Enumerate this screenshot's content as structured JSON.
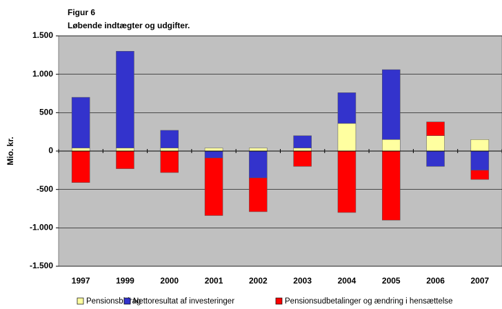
{
  "chart_data": {
    "type": "bar",
    "stacked": true,
    "title": "Figur 6",
    "subtitle": "Løbende indtægter og udgifter.",
    "y_label": "Mio. kr.",
    "categories": [
      "1997",
      "1999",
      "2000",
      "2001",
      "2002",
      "2003",
      "2004",
      "2005",
      "2006",
      "2007"
    ],
    "series": [
      {
        "name": "Pensionsbidrag",
        "color": "#ffffa0",
        "values": [
          40,
          40,
          40,
          40,
          40,
          40,
          360,
          150,
          200,
          150
        ]
      },
      {
        "name": "Nettoresultat af investeringer",
        "color": "#3333cc",
        "values": [
          660,
          1260,
          230,
          -90,
          -350,
          160,
          400,
          910,
          -200,
          -250
        ]
      },
      {
        "name": "Pensionsudbetalinger og ændring i hensættelse",
        "color": "#ff0000",
        "values": [
          -410,
          -230,
          -280,
          -750,
          -440,
          -200,
          -800,
          -900,
          180,
          -120
        ]
      }
    ],
    "ylim": [
      -1500,
      1500
    ],
    "yticks": [
      {
        "value": -1500,
        "label": "-1.500"
      },
      {
        "value": -1000,
        "label": "-1.000"
      },
      -500,
      0,
      500,
      {
        "value": 1000,
        "label": "1.000"
      },
      {
        "value": 1500,
        "label": "1.500"
      }
    ],
    "grid": true,
    "legend": "bottom",
    "plot_background": "#c0c0c0"
  }
}
